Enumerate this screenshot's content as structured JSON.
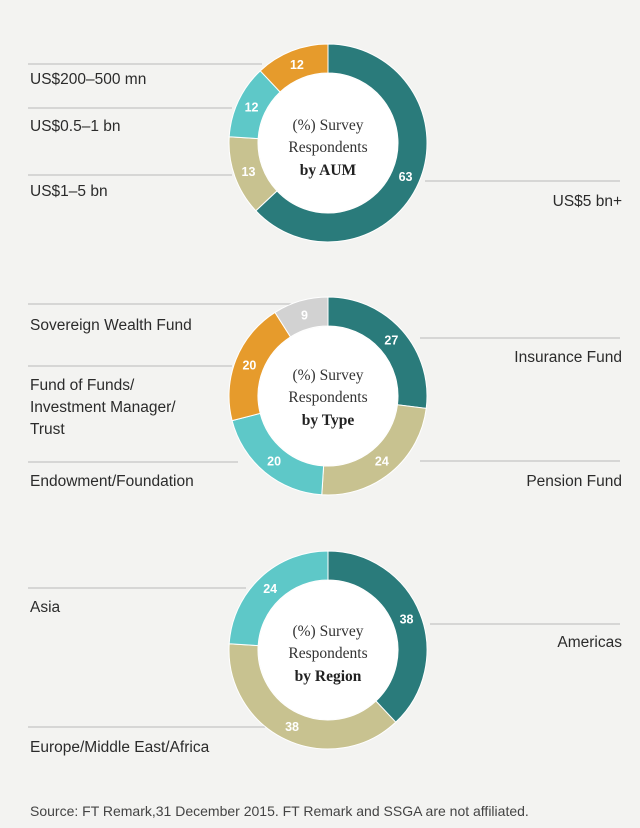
{
  "colors": {
    "dark_teal": "#2a7b7b",
    "light_teal": "#5ec8c8",
    "tan": "#c8c290",
    "orange": "#e69b2c",
    "gray": "#d2d2d2",
    "center": "#ffffff"
  },
  "chart_data": [
    {
      "type": "donut",
      "center_label": [
        "(%) Survey",
        "Respondents",
        "by AUM"
      ],
      "series": [
        {
          "name": "US$5 bn+",
          "value": 63,
          "color": "#2a7b7b"
        },
        {
          "name": "US$1–5 bn",
          "value": 13,
          "color": "#c8c290"
        },
        {
          "name": "US$0.5–1 bn",
          "value": 12,
          "color": "#5ec8c8"
        },
        {
          "name": "US$200–500 mn",
          "value": 12,
          "color": "#e69b2c"
        }
      ]
    },
    {
      "type": "donut",
      "center_label": [
        "(%) Survey",
        "Respondents",
        "by Type"
      ],
      "series": [
        {
          "name": "Insurance Fund",
          "value": 27,
          "color": "#2a7b7b"
        },
        {
          "name": "Pension Fund",
          "value": 24,
          "color": "#c8c290"
        },
        {
          "name": "Endowment/Foundation",
          "value": 20,
          "color": "#5ec8c8"
        },
        {
          "name": "Fund of Funds/ Investment Manager/ Trust",
          "value": 20,
          "color": "#e69b2c"
        },
        {
          "name": "Sovereign Wealth Fund",
          "value": 9,
          "color": "#d2d2d2"
        }
      ]
    },
    {
      "type": "donut",
      "center_label": [
        "(%) Survey",
        "Respondents",
        "by Region"
      ],
      "series": [
        {
          "name": "Americas",
          "value": 38,
          "color": "#2a7b7b"
        },
        {
          "name": "Europe/Middle East/Africa",
          "value": 38,
          "color": "#c8c290"
        },
        {
          "name": "Asia",
          "value": 24,
          "color": "#5ec8c8"
        }
      ]
    }
  ],
  "source": "Source: FT Remark,31 December 2015. FT Remark and SSGA are not affiliated."
}
